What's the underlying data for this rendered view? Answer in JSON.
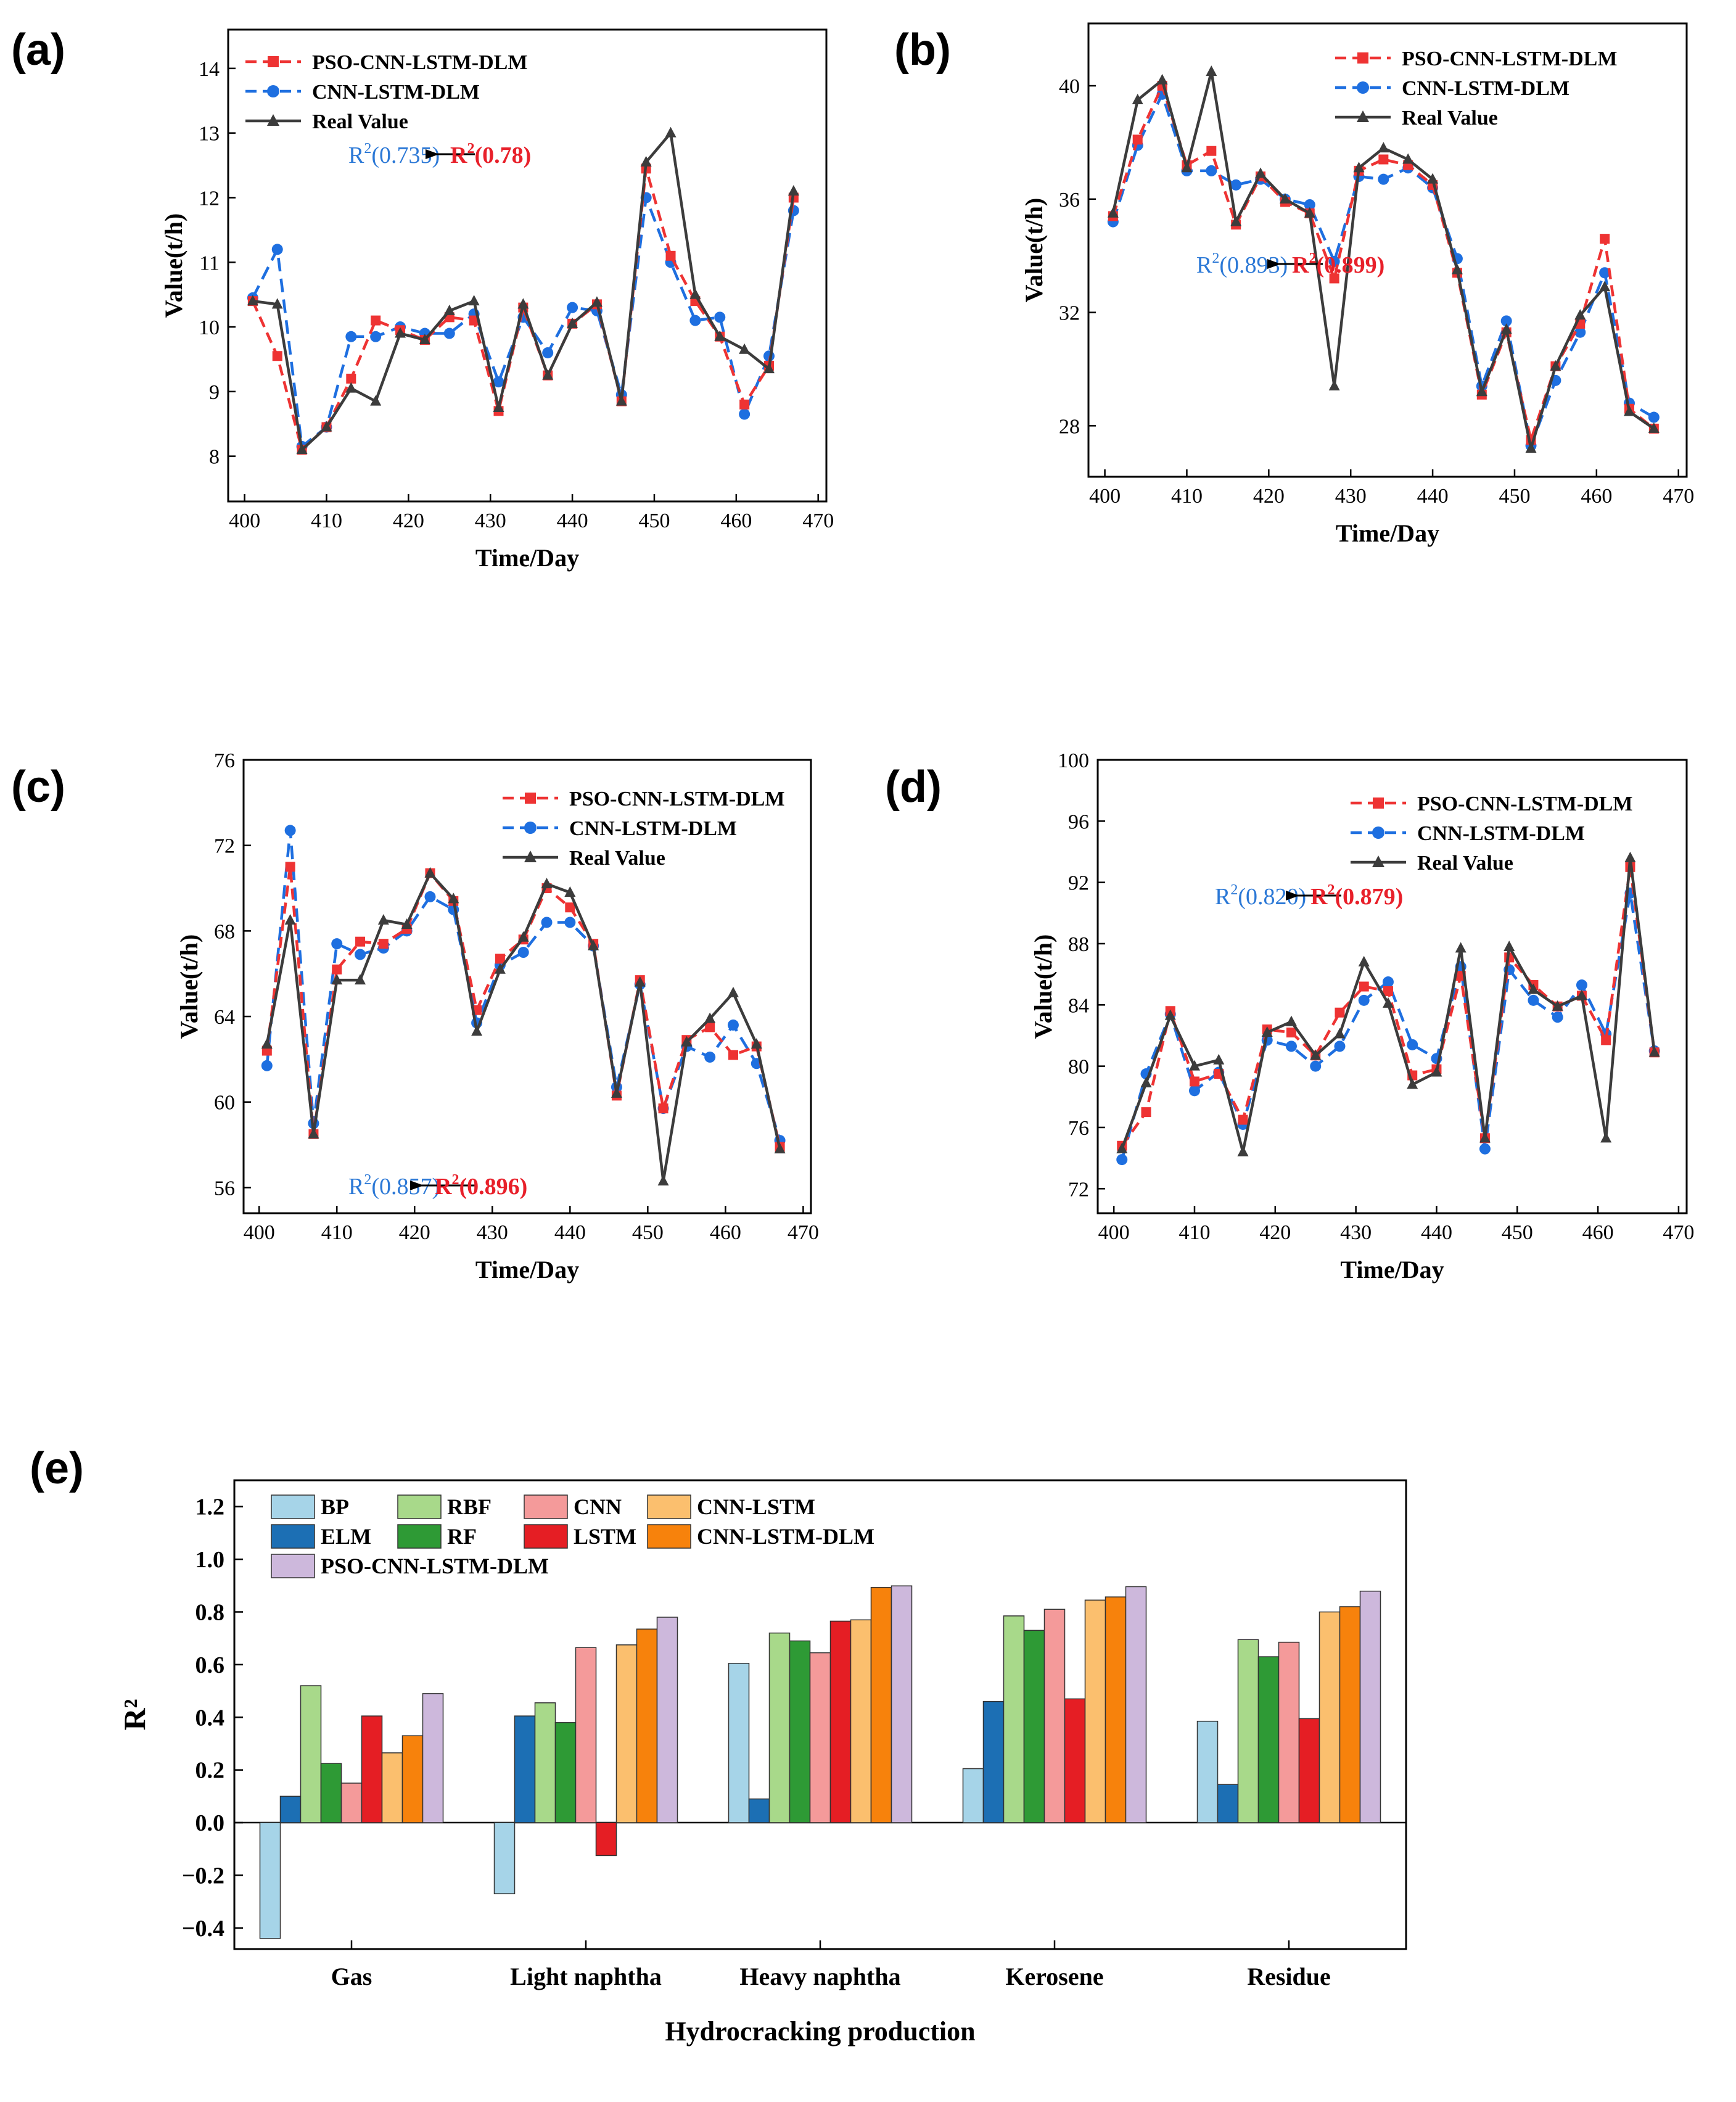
{
  "figure": {
    "panel_labels": [
      "(a)",
      "(b)",
      "(c)",
      "(d)",
      "(e)"
    ],
    "colors": {
      "pso": "#EE3333",
      "cnn": "#1E6FE0",
      "real": "#3C3C3C",
      "r2_blue": "#2B78D6",
      "r2_red": "#E8202A"
    }
  },
  "chart_data": [
    {
      "id": "a",
      "type": "line",
      "label": "(a)",
      "xlabel": "Time/Day",
      "ylabel": "Value(t/h)",
      "xlim": [
        398,
        471
      ],
      "ylim": [
        7.3,
        14.6
      ],
      "xticks": [
        400,
        410,
        420,
        430,
        440,
        450,
        460,
        470
      ],
      "yticks": [
        8,
        9,
        10,
        11,
        12,
        13,
        14
      ],
      "x": [
        401,
        404,
        407,
        410,
        413,
        416,
        419,
        422,
        425,
        428,
        431,
        434,
        437,
        440,
        443,
        446,
        449,
        452,
        455,
        458,
        461,
        464,
        467
      ],
      "series": [
        {
          "name": "PSO-CNN-LSTM-DLM",
          "style": "pso",
          "values": [
            10.4,
            9.55,
            8.1,
            8.45,
            9.2,
            10.1,
            9.95,
            9.8,
            10.15,
            10.1,
            8.7,
            10.3,
            9.25,
            10.05,
            10.35,
            8.85,
            12.45,
            11.1,
            10.4,
            9.85,
            8.8,
            9.4,
            12.0
          ]
        },
        {
          "name": "CNN-LSTM-DLM",
          "style": "cnn",
          "values": [
            10.45,
            11.2,
            8.15,
            8.45,
            9.85,
            9.85,
            10.0,
            9.9,
            9.9,
            10.2,
            9.15,
            10.15,
            9.6,
            10.3,
            10.25,
            8.95,
            12.0,
            11.0,
            10.1,
            10.15,
            8.65,
            9.55,
            11.8
          ]
        },
        {
          "name": "Real Value",
          "style": "real",
          "values": [
            10.4,
            10.35,
            8.1,
            8.45,
            9.05,
            8.85,
            9.9,
            9.8,
            10.25,
            10.4,
            8.75,
            10.35,
            9.25,
            10.05,
            10.38,
            8.85,
            12.55,
            13.0,
            10.5,
            9.85,
            9.65,
            9.35,
            12.1
          ]
        }
      ],
      "annotation": {
        "left": "0.735",
        "right": "0.78"
      },
      "ann_pos": [
        195,
        202,
        360,
        202
      ],
      "legend_pos": [
        28,
        22
      ]
    },
    {
      "id": "b",
      "type": "line",
      "label": "(b)",
      "xlabel": "Time/Day",
      "ylabel": "Value(t/h)",
      "xlim": [
        398,
        471
      ],
      "ylim": [
        26.2,
        42.2
      ],
      "xticks": [
        400,
        410,
        420,
        430,
        440,
        450,
        460,
        470
      ],
      "yticks": [
        28,
        32,
        36,
        40
      ],
      "x": [
        401,
        404,
        407,
        410,
        413,
        416,
        419,
        422,
        425,
        428,
        431,
        434,
        437,
        440,
        443,
        446,
        449,
        452,
        455,
        458,
        461,
        464,
        467
      ],
      "series": [
        {
          "name": "PSO-CNN-LSTM-DLM",
          "style": "pso",
          "values": [
            35.4,
            38.1,
            40.0,
            37.2,
            37.7,
            35.1,
            36.8,
            35.9,
            35.5,
            33.2,
            37.0,
            37.4,
            37.2,
            36.5,
            33.4,
            29.1,
            31.3,
            27.5,
            30.1,
            31.6,
            34.6,
            28.6,
            27.9
          ]
        },
        {
          "name": "CNN-LSTM-DLM",
          "style": "cnn",
          "values": [
            35.2,
            37.9,
            39.7,
            37.0,
            37.0,
            36.5,
            36.7,
            36.0,
            35.8,
            33.8,
            36.8,
            36.7,
            37.1,
            36.4,
            33.9,
            29.4,
            31.7,
            27.3,
            29.6,
            31.3,
            33.4,
            28.8,
            28.3
          ]
        },
        {
          "name": "Real Value",
          "style": "real",
          "values": [
            35.5,
            39.5,
            40.2,
            37.1,
            40.5,
            35.2,
            36.9,
            36.0,
            35.5,
            29.4,
            37.1,
            37.8,
            37.4,
            36.7,
            33.5,
            29.2,
            31.4,
            27.2,
            30.1,
            31.9,
            32.9,
            28.5,
            27.9
          ]
        }
      ],
      "annotation": {
        "left": "0.893",
        "right": "0.899"
      },
      "ann_pos": [
        175,
        390,
        330,
        390
      ],
      "legend_pos": [
        400,
        26
      ]
    },
    {
      "id": "c",
      "type": "line",
      "label": "(c)",
      "xlabel": "Time/Day",
      "ylabel": "Value(t/h)",
      "xlim": [
        398,
        471
      ],
      "ylim": [
        54.8,
        76.0
      ],
      "xticks": [
        400,
        410,
        420,
        430,
        440,
        450,
        460,
        470
      ],
      "yticks": [
        56,
        60,
        64,
        68,
        72,
        76
      ],
      "x": [
        401,
        404,
        407,
        410,
        413,
        416,
        419,
        422,
        425,
        428,
        431,
        434,
        437,
        440,
        443,
        446,
        449,
        452,
        455,
        458,
        461,
        464,
        467
      ],
      "series": [
        {
          "name": "PSO-CNN-LSTM-DLM",
          "style": "pso",
          "values": [
            62.4,
            71.0,
            58.5,
            66.2,
            67.5,
            67.4,
            68.1,
            70.7,
            69.4,
            64.3,
            66.7,
            67.6,
            70.0,
            69.1,
            67.4,
            60.3,
            65.7,
            59.7,
            62.9,
            63.5,
            62.2,
            62.6,
            57.9
          ]
        },
        {
          "name": "CNN-LSTM-DLM",
          "style": "cnn",
          "values": [
            61.7,
            72.7,
            59.0,
            67.4,
            66.9,
            67.2,
            68.0,
            69.6,
            69.0,
            63.7,
            66.4,
            67.0,
            68.4,
            68.4,
            67.3,
            60.7,
            65.5,
            59.7,
            62.6,
            62.1,
            63.6,
            61.8,
            58.2
          ]
        },
        {
          "name": "Real Value",
          "style": "real",
          "values": [
            62.7,
            68.5,
            58.5,
            65.7,
            65.7,
            68.5,
            68.3,
            70.7,
            69.5,
            63.3,
            66.2,
            67.7,
            70.2,
            69.8,
            67.3,
            60.4,
            65.6,
            56.3,
            62.8,
            63.9,
            65.1,
            62.7,
            57.8
          ]
        }
      ],
      "annotation": {
        "left": "0.857",
        "right": "0.896"
      },
      "ann_pos": [
        170,
        690,
        310,
        690
      ],
      "legend_pos": [
        420,
        32
      ]
    },
    {
      "id": "d",
      "type": "line",
      "label": "(d)",
      "xlabel": "Time/Day",
      "ylabel": "Value(t/h)",
      "xlim": [
        398,
        471
      ],
      "ylim": [
        70.4,
        100.0
      ],
      "xticks": [
        400,
        410,
        420,
        430,
        440,
        450,
        460,
        470
      ],
      "yticks": [
        72,
        76,
        80,
        84,
        88,
        92,
        96,
        100
      ],
      "x": [
        401,
        404,
        407,
        410,
        413,
        416,
        419,
        422,
        425,
        428,
        431,
        434,
        437,
        440,
        443,
        446,
        449,
        452,
        455,
        458,
        461,
        464,
        467
      ],
      "series": [
        {
          "name": "PSO-CNN-LSTM-DLM",
          "style": "pso",
          "values": [
            74.8,
            77.0,
            83.6,
            79.0,
            79.5,
            76.5,
            82.4,
            82.2,
            80.7,
            83.5,
            85.2,
            84.9,
            79.4,
            79.8,
            85.9,
            75.3,
            87.1,
            85.3,
            83.9,
            84.6,
            81.7,
            93.0,
            80.9
          ]
        },
        {
          "name": "CNN-LSTM-DLM",
          "style": "cnn",
          "values": [
            73.9,
            79.5,
            83.4,
            78.4,
            79.6,
            76.2,
            81.7,
            81.3,
            80.0,
            81.3,
            84.3,
            85.5,
            81.4,
            80.5,
            86.5,
            74.6,
            86.3,
            84.3,
            83.2,
            85.3,
            82.1,
            91.3,
            81.0
          ]
        },
        {
          "name": "Real Value",
          "style": "real",
          "values": [
            74.6,
            78.9,
            83.3,
            80.0,
            80.4,
            74.4,
            82.2,
            82.9,
            80.7,
            82.1,
            86.8,
            84.1,
            78.8,
            79.6,
            87.7,
            75.3,
            87.8,
            85.0,
            83.9,
            84.6,
            75.3,
            93.6,
            80.9
          ]
        }
      ],
      "annotation": {
        "left": "0.820",
        "right": "0.879"
      },
      "ann_pos": [
        190,
        220,
        345,
        220
      ],
      "legend_pos": [
        410,
        40
      ]
    },
    {
      "id": "e",
      "type": "bar",
      "label": "(e)",
      "xlabel": "Hydrocracking production",
      "ylabel": "R²",
      "ylim": [
        -0.48,
        1.3
      ],
      "yticks": [
        -0.4,
        -0.2,
        0.0,
        0.2,
        0.4,
        0.6,
        0.8,
        1.0,
        1.2
      ],
      "categories": [
        "Gas",
        "Light naphtha",
        "Heavy naphtha",
        "Kerosene",
        "Residue"
      ],
      "series": [
        {
          "name": "BP",
          "color": "#A6D4E8",
          "values": [
            -0.44,
            -0.27,
            0.605,
            0.205,
            0.385
          ]
        },
        {
          "name": "ELM",
          "color": "#1C6FB4",
          "values": [
            0.1,
            0.405,
            0.09,
            0.46,
            0.145
          ]
        },
        {
          "name": "RBF",
          "color": "#A8D98A",
          "values": [
            0.52,
            0.455,
            0.72,
            0.785,
            0.695
          ]
        },
        {
          "name": "RF",
          "color": "#2E9A35",
          "values": [
            0.225,
            0.38,
            0.69,
            0.73,
            0.63
          ]
        },
        {
          "name": "CNN",
          "color": "#F49A9A",
          "values": [
            0.15,
            0.665,
            0.645,
            0.81,
            0.685
          ]
        },
        {
          "name": "LSTM",
          "color": "#E51E24",
          "values": [
            0.405,
            -0.125,
            0.765,
            0.47,
            0.395
          ]
        },
        {
          "name": "CNN-LSTM",
          "color": "#FBBF6E",
          "values": [
            0.265,
            0.675,
            0.77,
            0.845,
            0.8
          ]
        },
        {
          "name": "CNN-LSTM-DLM",
          "color": "#F7820C",
          "values": [
            0.33,
            0.735,
            0.893,
            0.857,
            0.82
          ]
        },
        {
          "name": "PSO-CNN-LSTM-DLM",
          "color": "#CDB8DC",
          "values": [
            0.49,
            0.78,
            0.899,
            0.896,
            0.879
          ]
        }
      ]
    }
  ]
}
